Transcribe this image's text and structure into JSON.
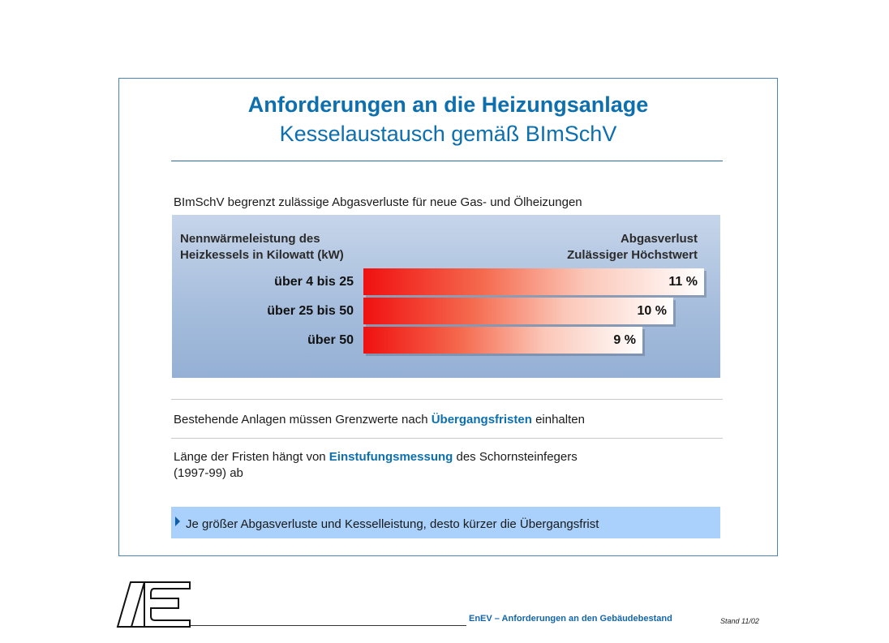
{
  "slide": {
    "title": "Anforderungen an die Heizungsanlage",
    "subtitle": "Kesselaustausch gemäß BImSchV"
  },
  "intro": "BImSchV begrenzt zulässige Abgasverluste für neue Gas- und Ölheizungen",
  "chart_data": {
    "type": "bar",
    "orientation": "horizontal",
    "header_left_line1": "Nennwärmeleistung des",
    "header_left_line2": "Heizkessels in Kilowatt (kW)",
    "header_right_line1": "Abgasverlust",
    "header_right_line2": "Zulässiger Höchstwert",
    "categories": [
      "über 4 bis 25",
      "über 25 bis 50",
      "über 50"
    ],
    "values": [
      11,
      10,
      9
    ],
    "value_labels": [
      "11 %",
      "10 %",
      "9 %"
    ],
    "unit": "%",
    "xlim": [
      0,
      11
    ],
    "colors": {
      "bar_start": "#f01010",
      "bar_end": "#ffffff",
      "background": "#a7bedd"
    }
  },
  "points": [
    {
      "before": "Bestehende Anlagen müssen Grenzwerte nach ",
      "highlight": "Übergangsfristen",
      "after": " einhalten"
    },
    {
      "before": "Länge der Fristen hängt von ",
      "highlight": "Einstufungsmessung",
      "after": " des Schornsteinfegers",
      "line2": "(1997-99) ab"
    }
  ],
  "callout": {
    "icon": "triangle-right-icon",
    "text": "Je größer Abgasverluste und Kesselleistung, desto kürzer die Übergangsfrist"
  },
  "footer": {
    "logo_icon": "ae-logo-icon",
    "title": "EnEV –  Anforderungen  an den Gebäudebestand",
    "date": "Stand 11/02"
  },
  "colors": {
    "accent": "#0d6fae",
    "callout_bg": "#a9d1fb",
    "frame": "#4a84b8"
  }
}
